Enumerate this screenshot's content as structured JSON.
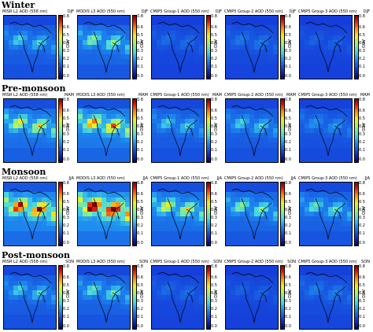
{
  "seasons": [
    {
      "title": "Winter",
      "code": "DJF"
    },
    {
      "title": "Pre-monsoon",
      "code": "MAM"
    },
    {
      "title": "Monsoon",
      "code": "JJA"
    },
    {
      "title": "Post-monsoon",
      "code": "SON"
    }
  ],
  "panels": [
    {
      "title": "MISR L2 AOD (558 nm)"
    },
    {
      "title": "MODIS L3 AOD (550 nm)"
    },
    {
      "title": "CMIP5 Group-1 AOD (550 nm)"
    },
    {
      "title": "CMIP5 Group-2 AOD (550 nm)"
    },
    {
      "title": "CMIP5 Group-3 AOD (550 nm)"
    }
  ],
  "colorbar": {
    "label": "AOD",
    "ticks": [
      "0.8",
      "0.6",
      "0.5",
      "0.4",
      "0.3",
      "0.2",
      "0.1",
      "0.0"
    ]
  },
  "colors": {
    "low": "#1438d8",
    "mid": "#46d8e0",
    "high": "#e01010",
    "very_high": "#800000",
    "background_blue": "#2a5ee8"
  }
}
